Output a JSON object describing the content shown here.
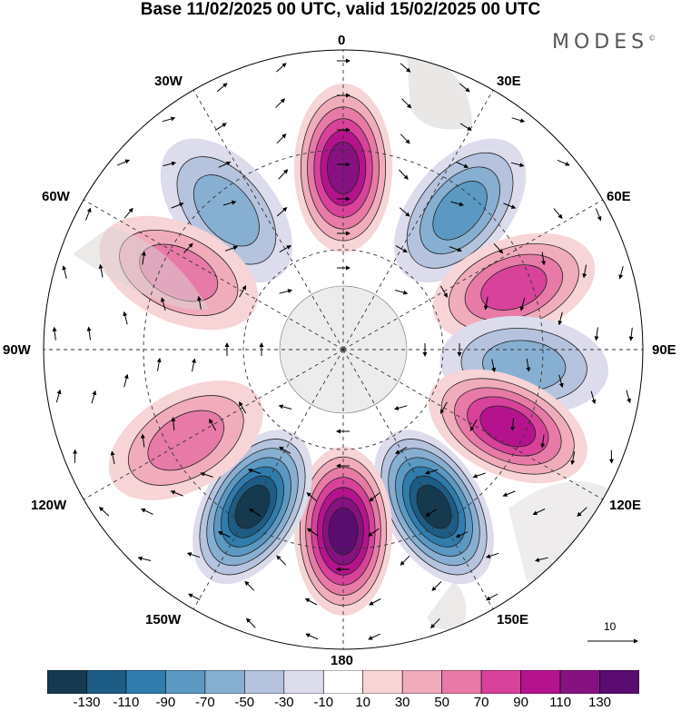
{
  "title": "Base 11/02/2025 00 UTC, valid 15/02/2025 00 UTC",
  "brand": "MODES",
  "brand_mark": "©",
  "longitude_labels": {
    "lon_0": "0",
    "lon_30e": "30E",
    "lon_60e": "60E",
    "lon_90e": "90E",
    "lon_120e": "120E",
    "lon_150e": "150E",
    "lon_180": "180",
    "lon_150w": "150W",
    "lon_120w": "120W",
    "lon_90w": "90W",
    "lon_60w": "60W",
    "lon_30w": "30W"
  },
  "reference_vector": {
    "label": "10"
  },
  "colorbar": {
    "tick_labels": [
      "-130",
      "-110",
      "-90",
      "-70",
      "-50",
      "-30",
      "-10",
      "10",
      "30",
      "50",
      "70",
      "90",
      "110",
      "130"
    ],
    "colors": [
      "#15394f",
      "#1d5c85",
      "#2f7cad",
      "#5b99c3",
      "#87afd1",
      "#b5c3de",
      "#dcdcec",
      "#ffffff",
      "#f7d4d6",
      "#f1acbc",
      "#e77aa6",
      "#d8429a",
      "#b5138e",
      "#851280",
      "#5a0c70"
    ]
  },
  "anomaly_centers": [
    {
      "kind": "positive",
      "level": 110,
      "lon": 0
    },
    {
      "kind": "negative",
      "level": -70,
      "lon": 40
    },
    {
      "kind": "positive",
      "level": 70,
      "lon": 70
    },
    {
      "kind": "negative",
      "level": -50,
      "lon": 95
    },
    {
      "kind": "positive",
      "level": 90,
      "lon": 115
    },
    {
      "kind": "negative",
      "level": -130,
      "lon": 150
    },
    {
      "kind": "positive",
      "level": 130,
      "lon": 180
    },
    {
      "kind": "negative",
      "level": -130,
      "lon": 210
    },
    {
      "kind": "positive",
      "level": 50,
      "lon": 240
    },
    {
      "kind": "negative",
      "level": -50,
      "lon": 320
    },
    {
      "kind": "positive",
      "level": 50,
      "lon": 295
    }
  ]
}
